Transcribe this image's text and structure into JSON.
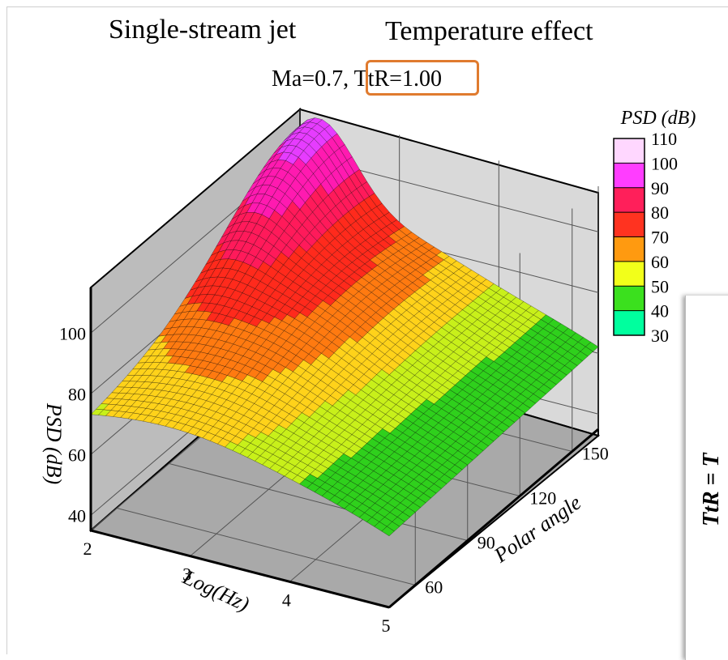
{
  "header": {
    "title_left": "Single-stream jet",
    "title_right": "Temperature effect",
    "subtitle_prefix": "Ma=0.7, ",
    "subtitle_highlight": "TtR=1.00",
    "highlight_color": "#e07b2f"
  },
  "side_panel": {
    "label": "TtR = T"
  },
  "chart_data": {
    "type": "surface",
    "xlabel": "Log(Hz)",
    "ylabel": "Polar angle",
    "zlabel": "PSD (dB)",
    "x_ticks": [
      "2",
      "3",
      "4",
      "5"
    ],
    "y_ticks": [
      "60",
      "90",
      "120",
      "150"
    ],
    "z_ticks": [
      "40",
      "60",
      "80",
      "100"
    ],
    "xlim": [
      2,
      5
    ],
    "ylim": [
      45,
      165
    ],
    "zlim": [
      35,
      115
    ],
    "colorbar": {
      "title": "PSD (dB)",
      "levels": [
        "110",
        "100",
        "90",
        "80",
        "70",
        "60",
        "50",
        "40",
        "30"
      ],
      "colors": [
        "#ffd7ff",
        "#ff3dff",
        "#ff1f5a",
        "#ff3320",
        "#ff9a10",
        "#f2ff1a",
        "#3be01e",
        "#00ff9e",
        "#0078ff"
      ]
    },
    "surface_corners": {
      "x2_angle45": 80,
      "x2_angle165": 110,
      "x5_angle45": 62,
      "x5_angle165": 65
    }
  }
}
